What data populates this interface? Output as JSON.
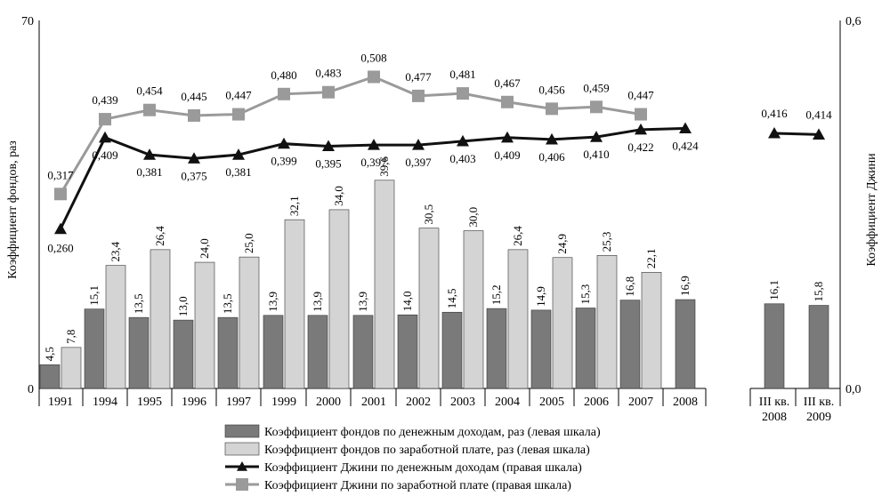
{
  "chart_data": {
    "type": "bar+line",
    "categories": [
      "1991",
      "1994",
      "1995",
      "1996",
      "1997",
      "1999",
      "2000",
      "2001",
      "2002",
      "2003",
      "2004",
      "2005",
      "2006",
      "2007",
      "2008",
      "III кв. 2008",
      "III кв. 2009"
    ],
    "category_lines": [
      [
        "1991"
      ],
      [
        "1994"
      ],
      [
        "1995"
      ],
      [
        "1996"
      ],
      [
        "1997"
      ],
      [
        "1999"
      ],
      [
        "2000"
      ],
      [
        "2001"
      ],
      [
        "2002"
      ],
      [
        "2003"
      ],
      [
        "2004"
      ],
      [
        "2005"
      ],
      [
        "2006"
      ],
      [
        "2007"
      ],
      [
        "2008"
      ],
      [
        "III кв.",
        "2008"
      ],
      [
        "III кв.",
        "2009"
      ]
    ],
    "series": [
      {
        "name": "Коэффициент фондов по денежным доходам, раз (левая шкала)",
        "kind": "bar",
        "axis": "left",
        "color": "#7a7a7a",
        "values": [
          4.5,
          15.1,
          13.5,
          13.0,
          13.5,
          13.9,
          13.9,
          13.9,
          14.0,
          14.5,
          15.2,
          14.9,
          15.3,
          16.8,
          16.9,
          16.1,
          15.8
        ],
        "labels": [
          "4,5",
          "15,1",
          "13,5",
          "13,0",
          "13,5",
          "13,9",
          "13,9",
          "13,9",
          "14,0",
          "14,5",
          "15,2",
          "14,9",
          "15,3",
          "16,8",
          "16,9",
          "16,1",
          "15,8"
        ]
      },
      {
        "name": "Коэффициент фондов по заработной плате, раз (левая шкала)",
        "kind": "bar",
        "axis": "left",
        "color": "#d4d4d4",
        "values": [
          7.8,
          23.4,
          26.4,
          24.0,
          25.0,
          32.1,
          34.0,
          39.6,
          30.5,
          30.0,
          26.4,
          24.9,
          25.3,
          22.1,
          null,
          null,
          null
        ],
        "labels": [
          "7,8",
          "23,4",
          "26,4",
          "24,0",
          "25,0",
          "32,1",
          "34,0",
          "39,6",
          "30,5",
          "30,0",
          "26,4",
          "24,9",
          "25,3",
          "22,1",
          null,
          null,
          null
        ]
      },
      {
        "name": "Коэффициент Джини по денежным  доходам (правая шкала)",
        "kind": "line",
        "marker": "triangle",
        "axis": "right",
        "color": "#111111",
        "values": [
          0.26,
          0.409,
          0.381,
          0.375,
          0.381,
          0.399,
          0.395,
          0.397,
          0.397,
          0.403,
          0.409,
          0.406,
          0.41,
          0.422,
          0.424,
          0.416,
          0.414
        ],
        "labels": [
          "0,260",
          "0,409",
          "0,381",
          "0,375",
          "0,381",
          "0,399",
          "0,395",
          "0,397",
          "0,397",
          "0,403",
          "0,409",
          "0,406",
          "0,410",
          "0,422",
          "0,424",
          "0,416",
          "0,414"
        ]
      },
      {
        "name": "Коэффициент Джини по заработной плате (правая шкала)",
        "kind": "line",
        "marker": "square",
        "axis": "right",
        "color": "#9a9a9a",
        "values": [
          0.317,
          0.439,
          0.454,
          0.445,
          0.447,
          0.48,
          0.483,
          0.508,
          0.477,
          0.481,
          0.467,
          0.456,
          0.459,
          0.447,
          null,
          null,
          null
        ],
        "labels": [
          "0,317",
          "0,439",
          "0,454",
          "0,445",
          "0,447",
          "0,480",
          "0,483",
          "0,508",
          "0,477",
          "0,481",
          "0,467",
          "0,456",
          "0,459",
          "0,447",
          null,
          null,
          null
        ]
      }
    ],
    "yleft": {
      "title": "Коэффициент фондов, раз",
      "min": 0,
      "max": 70,
      "ticks": [
        "0",
        "70"
      ]
    },
    "yright": {
      "title": "Коэффициент Джини",
      "min": 0.0,
      "max": 0.6,
      "ticks": [
        "0,0",
        "0,6"
      ]
    },
    "legend_position": "bottom-center"
  }
}
